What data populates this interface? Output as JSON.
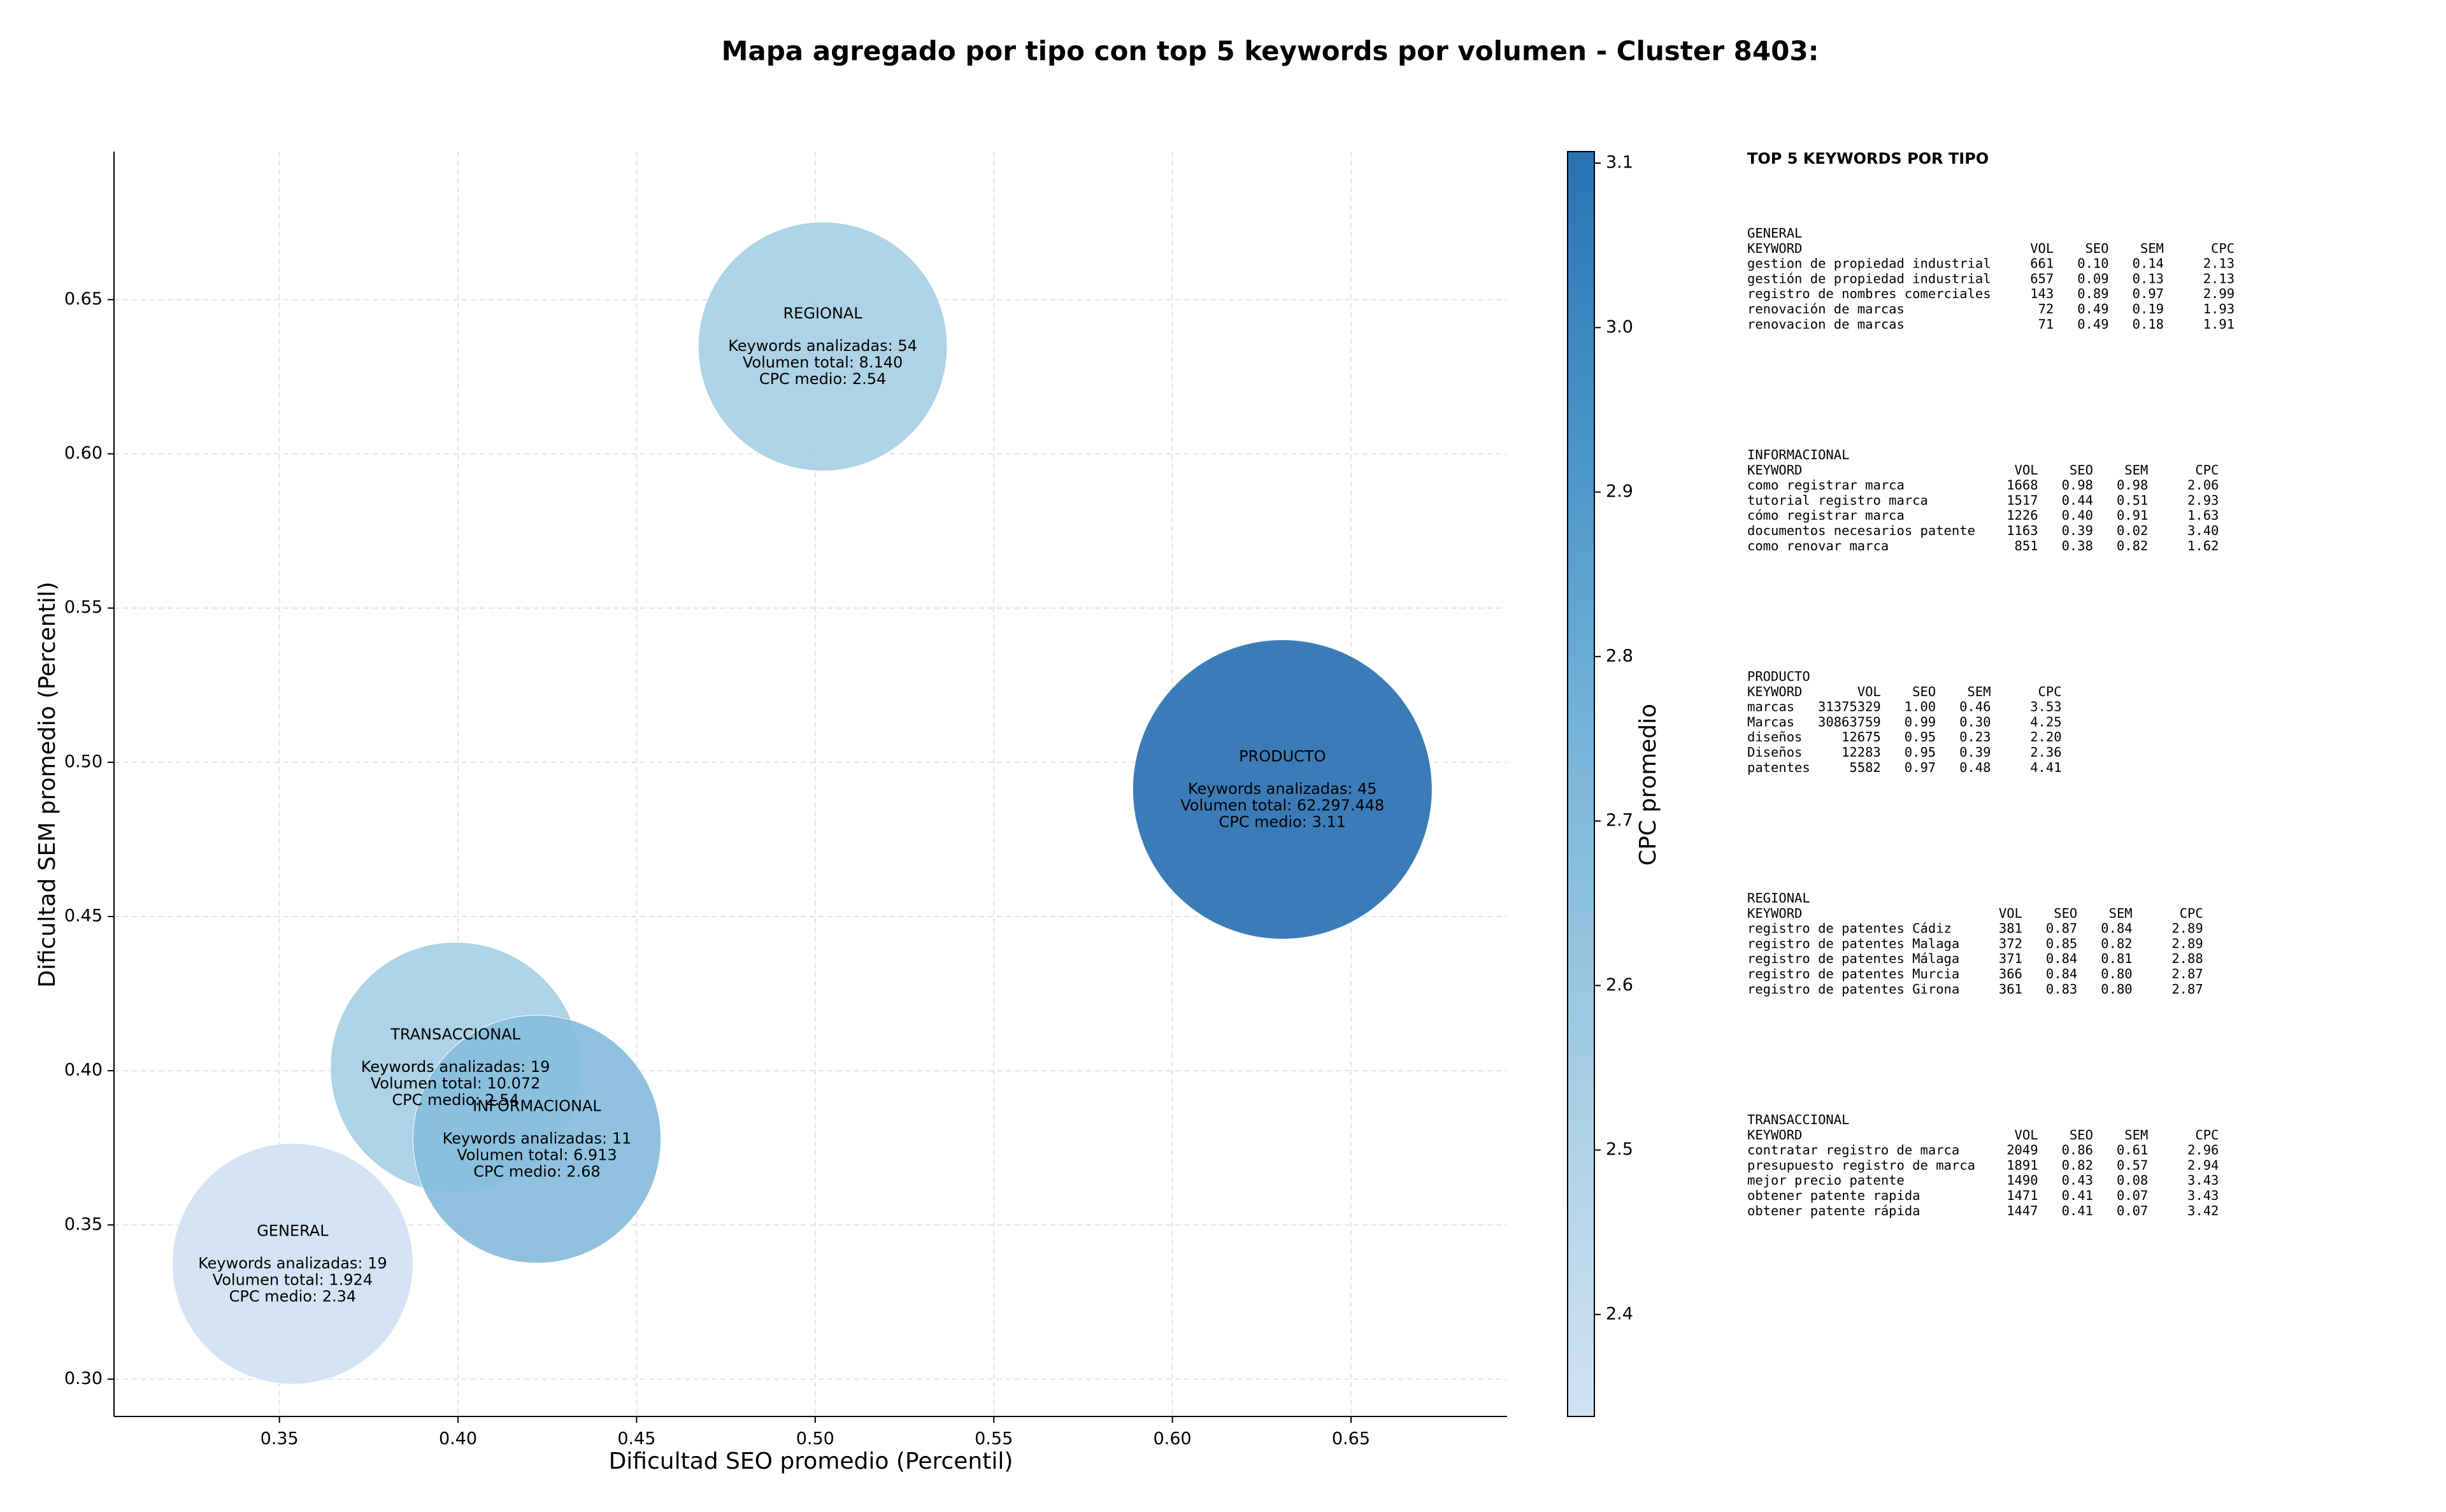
{
  "chart_data": {
    "type": "bubble",
    "title": "Mapa agregado por tipo con top 5 keywords por volumen - Cluster 8403:",
    "x_label": "Dificultad SEO promedio (Percentil)",
    "y_label": "Dificultad SEM promedio (Percentil)",
    "categories": [
      "GENERAL",
      "TRANSACCIONAL",
      "INFORMACIONAL",
      "REGIONAL",
      "PRODUCTO"
    ],
    "x": [
      0.3537,
      0.3993,
      0.4221,
      0.5021,
      0.6308
    ],
    "values": [
      0.3374,
      0.4011,
      0.3778,
      0.6348,
      0.4912
    ],
    "sizes": [
      1924,
      10072,
      6913,
      8140,
      62297448
    ],
    "size_labels": [
      "1.924",
      "10.072",
      "6.913",
      "8.140",
      "62.297.448"
    ],
    "keywords": [
      19,
      19,
      11,
      54,
      45
    ],
    "cpc": [
      2.34,
      2.54,
      2.68,
      2.54,
      3.11
    ],
    "bubble_text": {
      "keywords": "Keywords analizadas: ",
      "volume": "Volumen total: ",
      "cpc": "CPC medio: "
    },
    "xlim": [
      0.3037,
      0.6937
    ],
    "ylim": [
      0.2879,
      0.698
    ],
    "xticks": [
      0.35,
      {
        "value": 0.4,
        "label": "0.40"
      },
      0.45,
      {
        "value": 0.5,
        "label": "0.50"
      },
      0.55,
      {
        "value": 0.6,
        "label": "0.60"
      },
      0.65
    ],
    "yticks": [
      {
        "value": 0.3,
        "label": "0.30"
      },
      0.35,
      {
        "value": 0.4,
        "label": "0.40"
      },
      0.45,
      {
        "value": 0.5,
        "label": "0.50"
      },
      0.55,
      {
        "value": 0.6,
        "label": "0.60"
      },
      0.65
    ],
    "grid": true,
    "colorbar": {
      "label": "CPC promedio",
      "clim": [
        2.338,
        3.107
      ],
      "ticks": [
        2.4,
        2.5,
        2.6,
        2.7,
        2.8,
        2.9,
        {
          "value": 3,
          "label": "3.0"
        },
        3.1
      ],
      "colormap": [
        "#d1e2f3",
        "#a9cfe5",
        "#7db8da",
        "#4d97c9",
        "#2a71b2"
      ]
    }
  },
  "side_panel": {
    "title": "TOP 5 KEYWORDS POR TIPO",
    "columns": [
      "KEYWORD",
      "VOL",
      "SEO",
      "SEM",
      "CPC"
    ],
    "groups": [
      {
        "name": "GENERAL",
        "rows": [
          [
            "gestion de propiedad industrial",
            "661",
            "0.10",
            "0.14",
            "2.13"
          ],
          [
            "gestión de propiedad industrial",
            "657",
            "0.09",
            "0.13",
            "2.13"
          ],
          [
            "registro de nombres comerciales",
            "143",
            "0.89",
            "0.97",
            "2.99"
          ],
          [
            "renovación de marcas",
            "72",
            "0.49",
            "0.19",
            "1.93"
          ],
          [
            "renovacion de marcas",
            "71",
            "0.49",
            "0.18",
            "1.91"
          ]
        ]
      },
      {
        "name": "INFORMACIONAL",
        "rows": [
          [
            "como registrar marca",
            "1668",
            "0.98",
            "0.98",
            "2.06"
          ],
          [
            "tutorial registro marca",
            "1517",
            "0.44",
            "0.51",
            "2.93"
          ],
          [
            "cómo registrar marca",
            "1226",
            "0.40",
            "0.91",
            "1.63"
          ],
          [
            "documentos necesarios patente",
            "1163",
            "0.39",
            "0.02",
            "3.40"
          ],
          [
            "como renovar marca",
            "851",
            "0.38",
            "0.82",
            "1.62"
          ]
        ]
      },
      {
        "name": "PRODUCTO",
        "rows": [
          [
            "marcas",
            "31375329",
            "1.00",
            "0.46",
            "3.53"
          ],
          [
            "Marcas",
            "30863759",
            "0.99",
            "0.30",
            "4.25"
          ],
          [
            "diseños",
            "12675",
            "0.95",
            "0.23",
            "2.20"
          ],
          [
            "Diseños",
            "12283",
            "0.95",
            "0.39",
            "2.36"
          ],
          [
            "patentes",
            "5582",
            "0.97",
            "0.48",
            "4.41"
          ]
        ]
      },
      {
        "name": "REGIONAL",
        "rows": [
          [
            "registro de patentes Cádiz",
            "381",
            "0.87",
            "0.84",
            "2.89"
          ],
          [
            "registro de patentes Malaga",
            "372",
            "0.85",
            "0.82",
            "2.89"
          ],
          [
            "registro de patentes Málaga",
            "371",
            "0.84",
            "0.81",
            "2.88"
          ],
          [
            "registro de patentes Murcia",
            "366",
            "0.84",
            "0.80",
            "2.87"
          ],
          [
            "registro de patentes Girona",
            "361",
            "0.83",
            "0.80",
            "2.87"
          ]
        ]
      },
      {
        "name": "TRANSACCIONAL",
        "rows": [
          [
            "contratar registro de marca",
            "2049",
            "0.86",
            "0.61",
            "2.96"
          ],
          [
            "presupuesto registro de marca",
            "1891",
            "0.82",
            "0.57",
            "2.94"
          ],
          [
            "mejor precio patente",
            "1490",
            "0.43",
            "0.08",
            "3.43"
          ],
          [
            "obtener patente rapida",
            "1471",
            "0.41",
            "0.07",
            "3.43"
          ],
          [
            "obtener patente rápida",
            "1447",
            "0.41",
            "0.07",
            "3.42"
          ]
        ]
      }
    ]
  }
}
